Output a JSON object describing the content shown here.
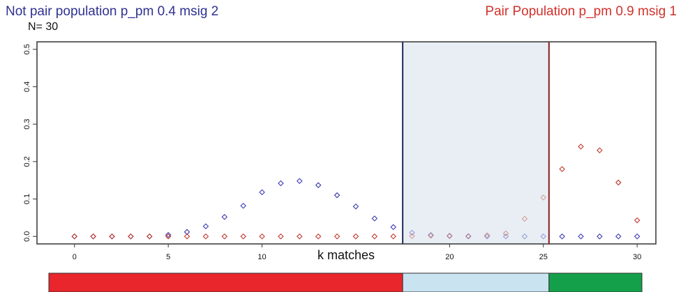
{
  "header": {
    "left_title": "Not pair population p_pm 0.4 msig 2",
    "right_title": "Pair Population p_pm 0.9 msig 1",
    "n_label": "N= 30"
  },
  "colors": {
    "not_pair": "#3b3bb0",
    "pair": "#c0392b",
    "left_title": "#2e3192",
    "right_title": "#d2312b",
    "band_red": "#e8262b",
    "band_lightblue": "#c9e3f1",
    "band_green": "#14a04a",
    "shade": "#e8eef4"
  },
  "chart_data": {
    "type": "scatter",
    "xlabel": "k matches",
    "ylabel": "",
    "xlim": [
      -2,
      31
    ],
    "ylim": [
      -0.02,
      0.52
    ],
    "x_ticks": [
      0,
      5,
      10,
      20,
      25,
      30
    ],
    "y_ticks": [
      0.0,
      0.1,
      0.2,
      0.3,
      0.4,
      0.5
    ],
    "y_tick_labels": [
      "0.0",
      "0.1",
      "0.2",
      "0.3",
      "0.4",
      "0.5"
    ],
    "thresholds": [
      17.5,
      25.3
    ],
    "shaded_region": [
      17.5,
      25.3
    ],
    "x": [
      0,
      1,
      2,
      3,
      4,
      5,
      6,
      7,
      8,
      9,
      10,
      11,
      12,
      13,
      14,
      15,
      16,
      17,
      18,
      19,
      20,
      21,
      22,
      23,
      24,
      25,
      26,
      27,
      28,
      29,
      30
    ],
    "series": [
      {
        "color": "#3b3bb0",
        "values": [
          0,
          0,
          0,
          0,
          0,
          0.004,
          0.012,
          0.027,
          0.052,
          0.082,
          0.118,
          0.142,
          0.148,
          0.137,
          0.11,
          0.08,
          0.048,
          0.025,
          0.01,
          0.004,
          0.001,
          0,
          0,
          0,
          0,
          0,
          0,
          0,
          0,
          0,
          0
        ]
      },
      {
        "color": "#c0392b",
        "values": [
          0,
          0,
          0,
          0,
          0,
          0,
          0,
          0,
          0,
          0,
          0,
          0,
          0,
          0,
          0,
          0,
          0,
          0,
          0.001,
          0.002,
          0.002,
          0.001,
          0.003,
          0.008,
          0.047,
          0.104,
          0.18,
          0.24,
          0.23,
          0.144,
          0.043
        ]
      }
    ]
  }
}
